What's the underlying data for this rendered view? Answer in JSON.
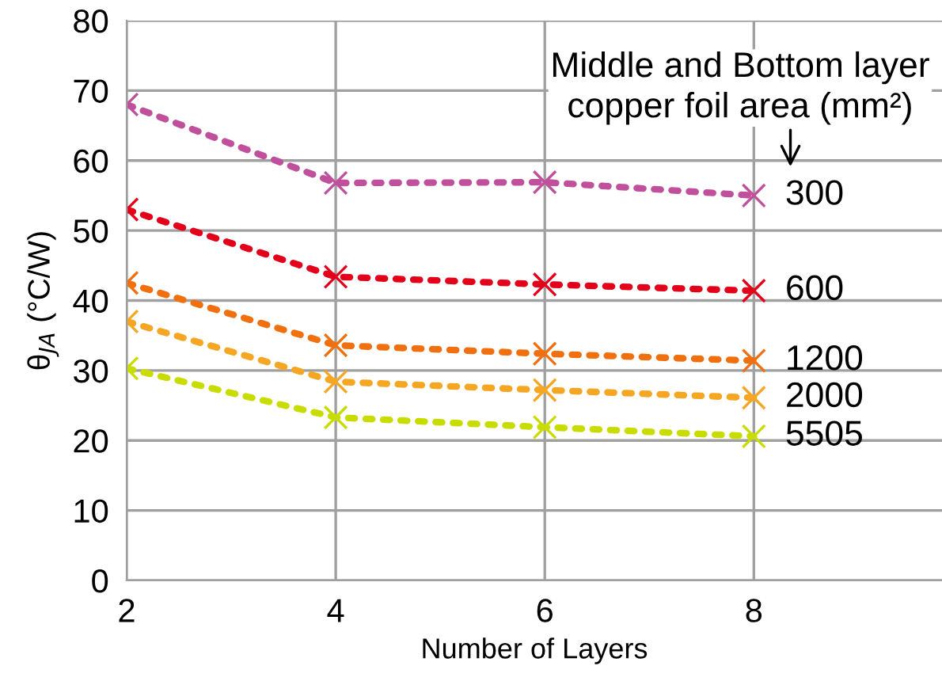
{
  "chart_data": {
    "type": "line",
    "xlabel": "Number of Layers",
    "ylabel": "θ$_{JA}$ (°C/W)",
    "legend_title": "Middle and Bottom layer\ncopper foil area (mm²)",
    "x": [
      2,
      4,
      6,
      8
    ],
    "xlim": [
      2,
      9.8
    ],
    "xticks": [
      2,
      4,
      6,
      8
    ],
    "ylim": [
      0,
      80
    ],
    "yticks": [
      0,
      10,
      20,
      30,
      40,
      50,
      60,
      70,
      80
    ],
    "grid": true,
    "marker": "cross",
    "line_style": "dotted",
    "series": [
      {
        "name": "300",
        "color": "#c0509c",
        "values": [
          68,
          56.8,
          56.9,
          55
        ]
      },
      {
        "name": "600",
        "color": "#e2001a",
        "values": [
          53,
          43.4,
          42.3,
          41.4
        ]
      },
      {
        "name": "1200",
        "color": "#f07010",
        "values": [
          42.5,
          33.6,
          32.4,
          31.4
        ]
      },
      {
        "name": "2000",
        "color": "#f5a623",
        "values": [
          37,
          28.4,
          27.2,
          26.1
        ]
      },
      {
        "name": "5505",
        "color": "#c8dc00",
        "values": [
          30.3,
          23.3,
          21.9,
          20.6
        ]
      }
    ]
  }
}
